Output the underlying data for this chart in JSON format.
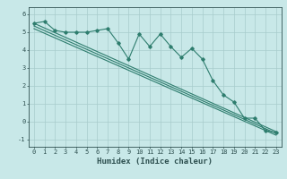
{
  "title": "",
  "xlabel": "Humidex (Indice chaleur)",
  "x_data": [
    0,
    1,
    2,
    3,
    4,
    5,
    6,
    7,
    8,
    9,
    10,
    11,
    12,
    13,
    14,
    15,
    16,
    17,
    18,
    19,
    20,
    21,
    22,
    23
  ],
  "y_data": [
    5.5,
    5.6,
    5.1,
    5.0,
    5.0,
    5.0,
    5.1,
    5.2,
    4.4,
    3.5,
    4.9,
    4.2,
    4.9,
    4.2,
    3.6,
    4.1,
    3.5,
    2.3,
    1.5,
    1.1,
    0.2,
    0.2,
    -0.5,
    -0.6
  ],
  "trend1_x": [
    0,
    23
  ],
  "trend1_y": [
    5.5,
    -0.55
  ],
  "trend2_x": [
    0,
    23
  ],
  "trend2_y": [
    5.35,
    -0.65
  ],
  "trend3_x": [
    0,
    23
  ],
  "trend3_y": [
    5.2,
    -0.75
  ],
  "xlim": [
    -0.5,
    23.5
  ],
  "ylim": [
    -1.4,
    6.4
  ],
  "yticks": [
    -1,
    0,
    1,
    2,
    3,
    4,
    5,
    6
  ],
  "xticks": [
    0,
    1,
    2,
    3,
    4,
    5,
    6,
    7,
    8,
    9,
    10,
    11,
    12,
    13,
    14,
    15,
    16,
    17,
    18,
    19,
    20,
    21,
    22,
    23
  ],
  "line_color": "#2e7d6e",
  "bg_color": "#c8e8e8",
  "grid_color": "#a8cccc",
  "font_color": "#2e5050",
  "tick_fontsize": 5.0,
  "xlabel_fontsize": 6.5
}
